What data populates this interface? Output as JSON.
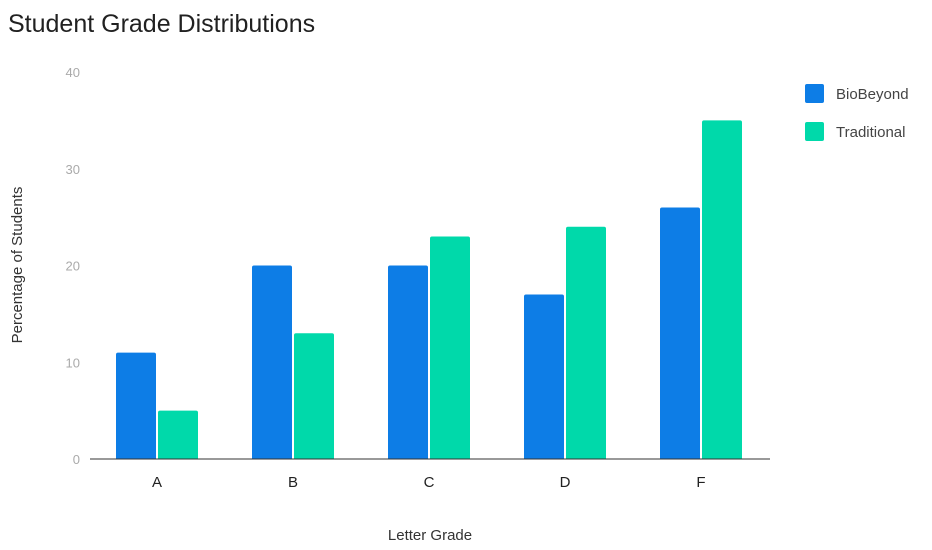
{
  "chart_data": {
    "type": "bar",
    "title": "Student Grade Distributions",
    "xlabel": "Letter Grade",
    "ylabel": "Percentage of Students",
    "categories": [
      "A",
      "B",
      "C",
      "D",
      "F"
    ],
    "series": [
      {
        "name": "BioBeyond",
        "values": [
          11,
          20,
          20,
          17,
          26
        ],
        "color": "#0d7de6"
      },
      {
        "name": "Traditional",
        "values": [
          5,
          13,
          23,
          24,
          35
        ],
        "color": "#00d9aa"
      }
    ],
    "ylim": [
      0,
      40
    ],
    "yticks": [
      0,
      10,
      20,
      30,
      40
    ],
    "grid": false,
    "legend": "right"
  }
}
